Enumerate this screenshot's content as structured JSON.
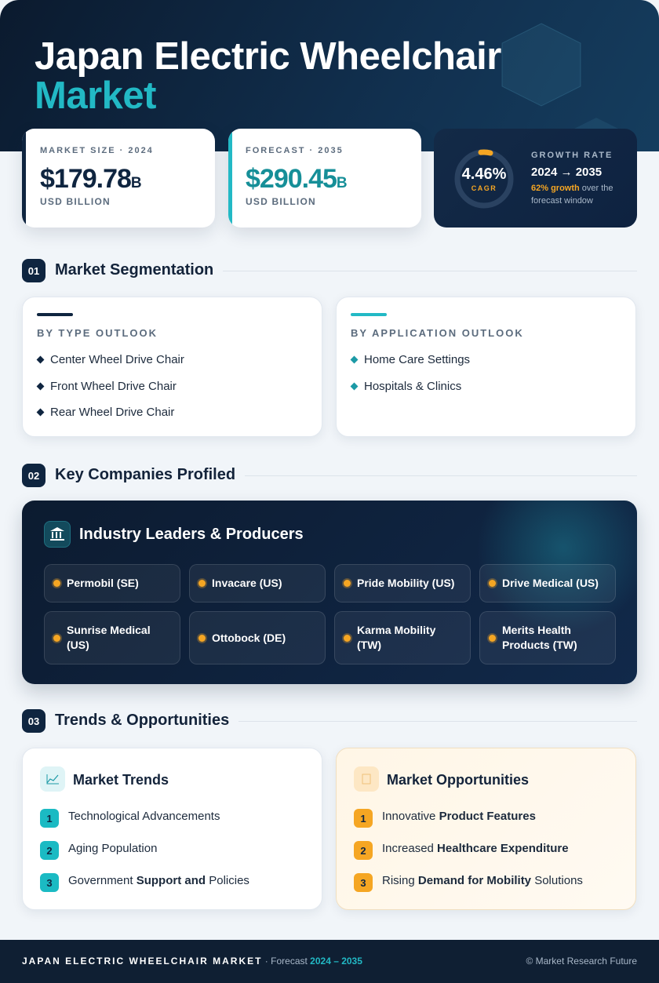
{
  "header": {
    "title_line1": "Japan Electric Wheelchair",
    "title_line2": "Market"
  },
  "stats": [
    {
      "label": "MARKET SIZE · 2024",
      "value": "$179.78",
      "unit": "B",
      "caption": "USD BILLION"
    },
    {
      "label": "FORECAST · 2035",
      "value": "$290.45",
      "unit": "B",
      "caption": "USD BILLION"
    }
  ],
  "growth": {
    "cagr": "4.46%",
    "cagr_label": "CAGR",
    "label": "GROWTH RATE",
    "period": "2024 → 2035",
    "note_highlight": "62% growth",
    "note_rest": "over the forecast window"
  },
  "sections": [
    {
      "number": "01",
      "title": "Market Segmentation"
    },
    {
      "number": "02",
      "title": "Key Companies Profiled"
    },
    {
      "number": "03",
      "title": "Trends & Opportunities"
    }
  ],
  "segmentation": [
    {
      "title": "BY TYPE OUTLOOK",
      "items": [
        "Center Wheel Drive Chair",
        "Front Wheel Drive Chair",
        "Rear Wheel Drive Chair"
      ]
    },
    {
      "title": "BY APPLICATION OUTLOOK",
      "items": [
        "Home Care Settings",
        "Hospitals & Clinics"
      ]
    }
  ],
  "companies": {
    "title": "Industry Leaders & Producers",
    "items": [
      "Permobil (SE)",
      "Invacare (US)",
      "Pride Mobility (US)",
      "Drive Medical (US)",
      "Sunrise Medical (US)",
      "Ottobock (DE)",
      "Karma Mobility (TW)",
      "Merits Health Products (TW)"
    ]
  },
  "trends": {
    "title": "Market Trends",
    "items": [
      {
        "number": "1",
        "parts": [
          {
            "text": "Technological Advancements",
            "bold": false
          }
        ]
      },
      {
        "number": "2",
        "parts": [
          {
            "text": "Aging Population",
            "bold": false
          }
        ]
      },
      {
        "number": "3",
        "parts": [
          {
            "text": "Government",
            "bold": false
          },
          {
            "text": "Support and",
            "bold": true
          },
          {
            "text": "Policies",
            "bold": false
          }
        ]
      }
    ]
  },
  "opportunities": {
    "title": "Market Opportunities",
    "items": [
      {
        "number": "1",
        "parts": [
          {
            "text": "Innovative",
            "bold": false
          },
          {
            "text": "Product Features",
            "bold": true
          }
        ]
      },
      {
        "number": "2",
        "parts": [
          {
            "text": "Increased",
            "bold": false
          },
          {
            "text": "Healthcare Expenditure",
            "bold": true
          }
        ]
      },
      {
        "number": "3",
        "parts": [
          {
            "text": "Rising",
            "bold": false
          },
          {
            "text": "Demand for Mobility",
            "bold": true
          },
          {
            "text": "Solutions",
            "bold": false
          }
        ]
      }
    ]
  },
  "footer": {
    "brand": "JAPAN ELECTRIC WHEELCHAIR MARKET",
    "separator": "·",
    "forecast": "Forecast",
    "period": "2024 – 2035",
    "credit": "© Market Research Future"
  }
}
